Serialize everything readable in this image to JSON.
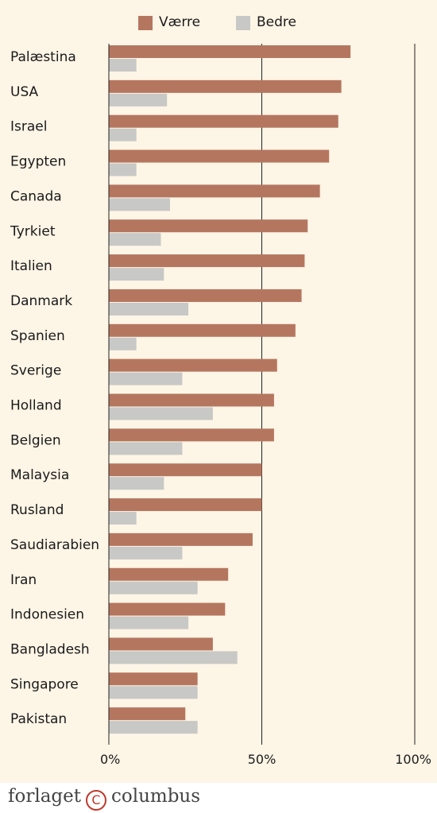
{
  "chart_data": {
    "type": "bar",
    "orientation": "horizontal",
    "categories": [
      "Palæstina",
      "USA",
      "Israel",
      "Egypten",
      "Canada",
      "Tyrkiet",
      "Italien",
      "Danmark",
      "Spanien",
      "Sverige",
      "Holland",
      "Belgien",
      "Malaysia",
      "Rusland",
      "Saudiarabien",
      "Iran",
      "Indonesien",
      "Bangladesh",
      "Singapore",
      "Pakistan"
    ],
    "series": [
      {
        "name": "Værre",
        "color": "#b5765f",
        "values": [
          79,
          76,
          75,
          72,
          69,
          65,
          64,
          63,
          61,
          55,
          54,
          54,
          50,
          50,
          47,
          39,
          38,
          34,
          29,
          25
        ]
      },
      {
        "name": "Bedre",
        "color": "#c8c8c6",
        "values": [
          9,
          19,
          9,
          9,
          20,
          17,
          18,
          26,
          9,
          24,
          34,
          24,
          18,
          9,
          24,
          29,
          26,
          42,
          29,
          29
        ]
      }
    ],
    "xlim": [
      0,
      100
    ],
    "xticks": [
      0,
      50,
      100
    ],
    "xtick_labels": [
      "0%",
      "50%",
      "100%"
    ],
    "legend_position": "top",
    "gridlines": [
      50,
      100
    ]
  },
  "footer": {
    "brand_left": "forlaget",
    "brand_mark": "C",
    "brand_right": "columbus"
  }
}
